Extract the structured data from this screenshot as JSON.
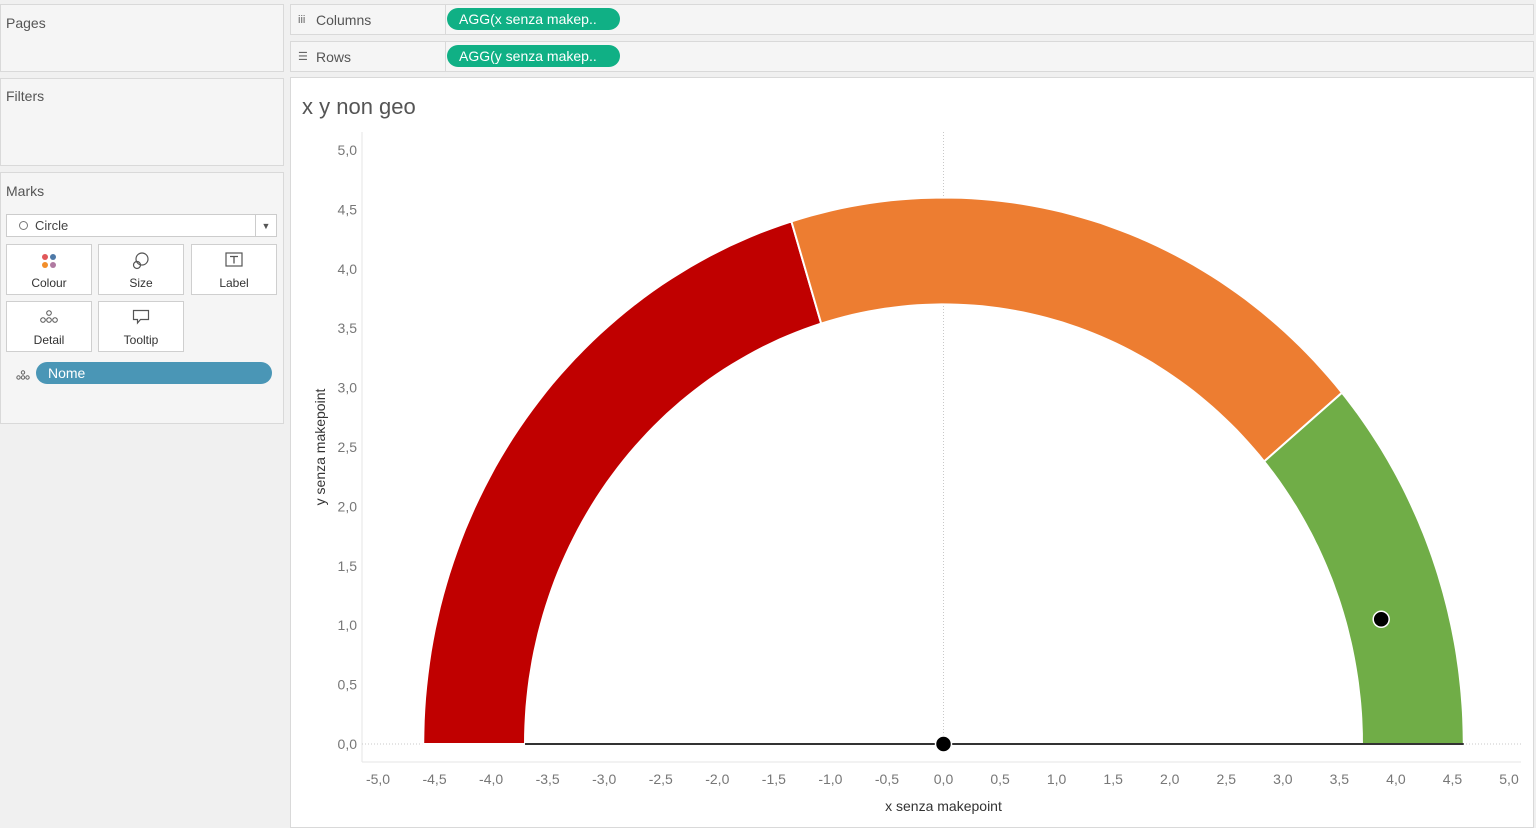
{
  "left_panel": {
    "pages_title": "Pages",
    "filters_title": "Filters",
    "marks_title": "Marks",
    "mark_type": "Circle",
    "buttons": {
      "colour": "Colour",
      "size": "Size",
      "label": "Label",
      "detail": "Detail",
      "tooltip": "Tooltip"
    },
    "detail_pill": "Nome"
  },
  "shelves": {
    "columns_label": "Columns",
    "columns_pill": "AGG(x senza makep..",
    "rows_label": "Rows",
    "rows_pill": "AGG(y senza makep.."
  },
  "colors": {
    "pill_green": "#10b085",
    "pill_blue": "#4a96b6",
    "red": "#c00000",
    "orange": "#ed7d31",
    "green": "#70ad47"
  },
  "chart_data": {
    "type": "scatter",
    "title": "x y non geo",
    "xlabel": "x senza makepoint",
    "ylabel": "y senza makepoint",
    "xlim": [
      -5.0,
      5.0
    ],
    "ylim": [
      0.0,
      5.0
    ],
    "x_ticks": [
      "-5,0",
      "-4,5",
      "-4,0",
      "-3,5",
      "-3,0",
      "-2,5",
      "-2,0",
      "-1,5",
      "-1,0",
      "-0,5",
      "0,0",
      "0,5",
      "1,0",
      "1,5",
      "2,0",
      "2,5",
      "3,0",
      "3,5",
      "4,0",
      "4,5",
      "5,0"
    ],
    "y_ticks": [
      "0,0",
      "0,5",
      "1,0",
      "1,5",
      "2,0",
      "2,5",
      "3,0",
      "3,5",
      "4,0",
      "4,5",
      "5,0"
    ],
    "gauge": {
      "inner_radius": 3.7,
      "outer_radius": 4.6,
      "segments": [
        {
          "color": "#c00000",
          "start_deg": 180,
          "end_deg": 107
        },
        {
          "color": "#ed7d31",
          "start_deg": 107,
          "end_deg": 40
        },
        {
          "color": "#70ad47",
          "start_deg": 40,
          "end_deg": 0
        }
      ]
    },
    "points": [
      {
        "x": 0.0,
        "y": 0.0
      },
      {
        "x": 3.87,
        "y": 1.05
      }
    ],
    "needle": [
      {
        "x": -3.7,
        "y": 0.0
      },
      {
        "x": 4.6,
        "y": 0.0
      }
    ]
  }
}
